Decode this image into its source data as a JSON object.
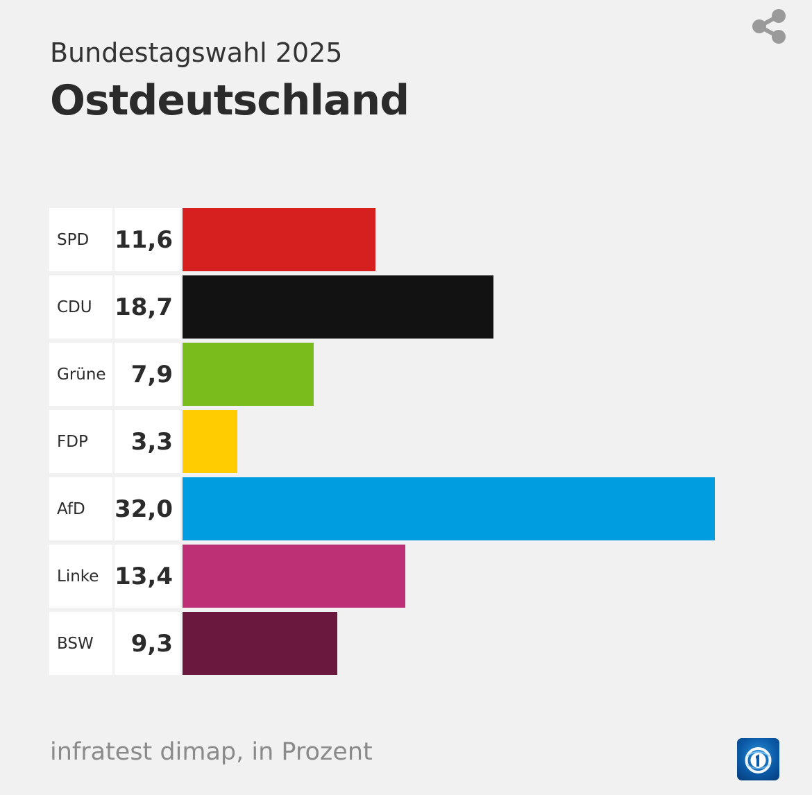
{
  "header": {
    "subtitle": "Bundestagswahl 2025",
    "title": "Ostdeutschland"
  },
  "footer": {
    "source": "infratest dimap, in Prozent"
  },
  "icons": {
    "share": "share-icon",
    "logo": "tagesschau-logo"
  },
  "chart_data": {
    "type": "bar",
    "orientation": "horizontal",
    "categories": [
      "SPD",
      "CDU",
      "Grüne",
      "FDP",
      "AfD",
      "Linke",
      "BSW"
    ],
    "values": [
      11.6,
      18.7,
      7.9,
      3.3,
      32.0,
      13.4,
      9.3
    ],
    "value_labels": [
      "11,6",
      "18,7",
      "7,9",
      "3,3",
      "32,0",
      "13,4",
      "9,3"
    ],
    "colors": [
      "#d6201f",
      "#121212",
      "#79bc1c",
      "#fecc00",
      "#009ee0",
      "#be3075",
      "#6b183e"
    ],
    "unit": "Prozent"
  }
}
